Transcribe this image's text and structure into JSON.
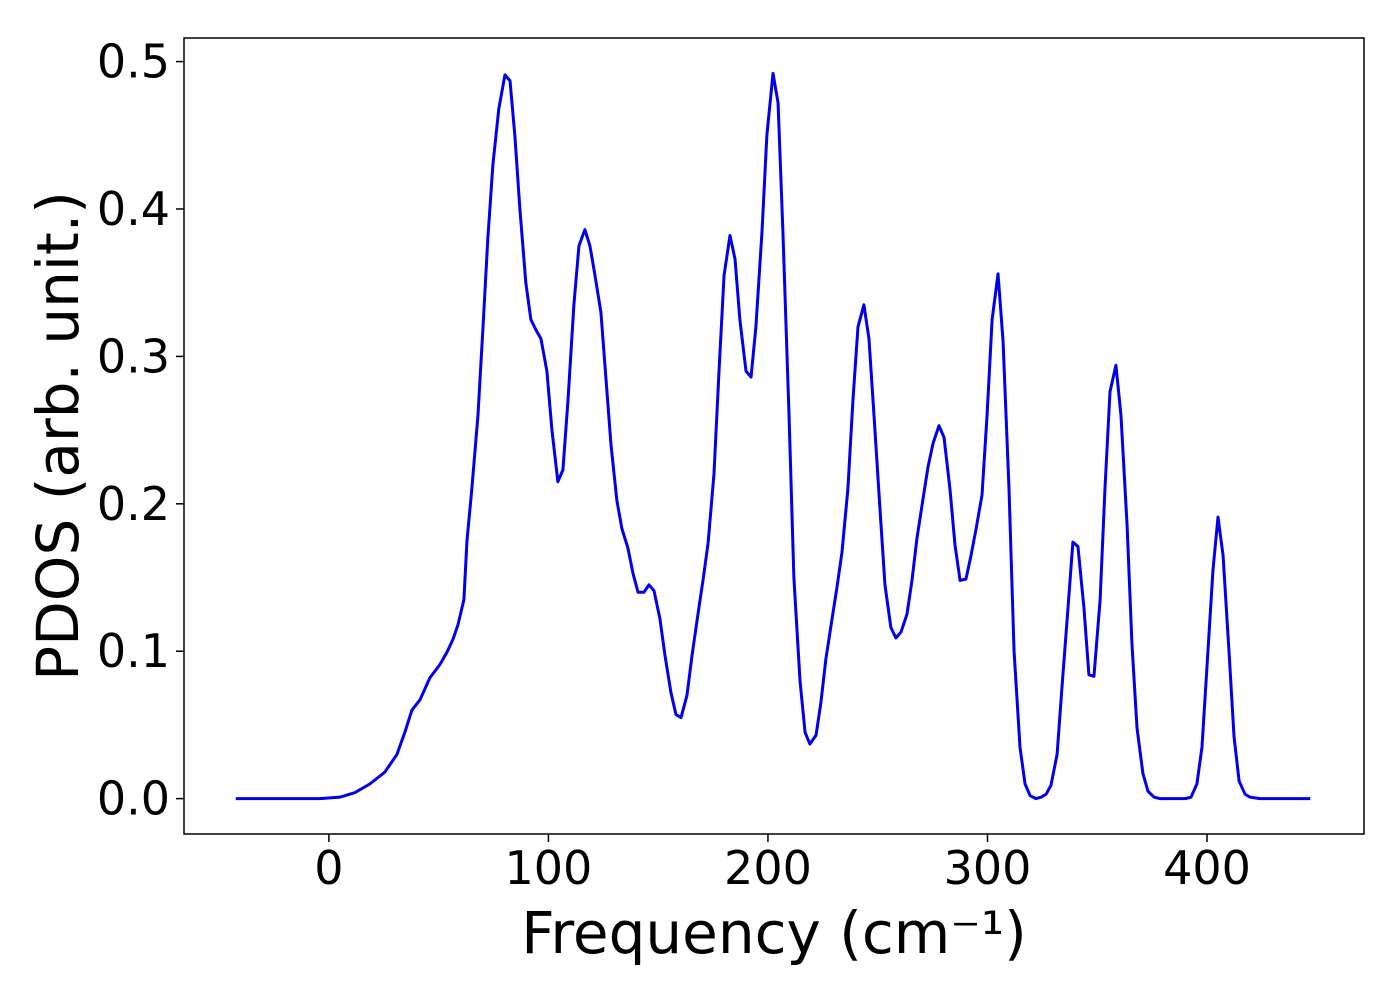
{
  "chart_data": {
    "type": "line",
    "xlabel": "Frequency (cm⁻¹)",
    "ylabel": "PDOS (arb. unit.)",
    "xlim": [
      -66,
      471.5
    ],
    "ylim": [
      -0.024,
      0.516
    ],
    "xticks": [
      0,
      100,
      200,
      300,
      400
    ],
    "yticks": [
      {
        "value": 0,
        "label": "0.0"
      },
      0.1,
      0.2,
      0.3,
      0.4,
      0.5
    ],
    "grid": false,
    "series": [
      {
        "color": "#0000ee",
        "x": [
          -42.4,
          -4.1,
          5,
          11.8,
          18.7,
          25.5,
          31,
          34.6,
          37.8,
          41.5,
          46,
          50.6,
          54,
          56.5,
          58.8,
          61.5,
          62.9,
          65.1,
          67.9,
          70.2,
          72.4,
          74.7,
          77.4,
          80.2,
          82.5,
          84.7,
          87,
          89.7,
          92,
          94.3,
          96.6,
          99.3,
          101.6,
          104.3,
          106.6,
          108.9,
          111.6,
          113.9,
          116.6,
          118.9,
          121.2,
          123.9,
          126.2,
          128.5,
          131.2,
          133.5,
          136.2,
          138.5,
          140.8,
          143.5,
          145.8,
          148.1,
          150.8,
          153.1,
          155.8,
          158.1,
          160.4,
          163.1,
          165.4,
          168.1,
          170.4,
          172.7,
          175.4,
          177.7,
          180,
          182.7,
          185,
          187.2,
          190,
          192.3,
          194.5,
          197.3,
          199.5,
          202.3,
          204.6,
          206.8,
          209.6,
          211.8,
          214.6,
          216.9,
          219.1,
          221.9,
          224.1,
          226.4,
          229.2,
          231.4,
          233.7,
          236.4,
          238.7,
          241,
          243.7,
          246,
          248.3,
          251,
          253.3,
          256,
          258.3,
          260.6,
          263.3,
          265.6,
          267.9,
          270.6,
          272.9,
          275.2,
          277.9,
          280.2,
          282.9,
          285.2,
          287.5,
          290.2,
          292.5,
          294.8,
          297.5,
          299.8,
          302.1,
          304.8,
          307.1,
          309.8,
          312.1,
          314.8,
          317.1,
          319.4,
          322.1,
          324.4,
          326.7,
          328.9,
          331.7,
          333.9,
          336.7,
          338.9,
          341.2,
          343.9,
          346.2,
          348.5,
          351.3,
          353.5,
          355.8,
          358.5,
          360.8,
          363.6,
          365.8,
          368.1,
          370.8,
          373.1,
          375.9,
          378.6,
          387.7,
          390,
          392.7,
          395.4,
          397.7,
          400,
          402.7,
          405,
          407.3,
          410,
          412.3,
          414.6,
          417.3,
          419.6,
          424.1,
          447
        ],
        "values": [
          0,
          0,
          0.001,
          0.004,
          0.01,
          0.018,
          0.03,
          0.045,
          0.06,
          0.067,
          0.082,
          0.091,
          0.1,
          0.108,
          0.118,
          0.135,
          0.175,
          0.21,
          0.26,
          0.32,
          0.38,
          0.43,
          0.468,
          0.491,
          0.487,
          0.45,
          0.4,
          0.35,
          0.325,
          0.318,
          0.312,
          0.29,
          0.25,
          0.215,
          0.223,
          0.27,
          0.335,
          0.375,
          0.386,
          0.375,
          0.355,
          0.33,
          0.285,
          0.24,
          0.202,
          0.183,
          0.17,
          0.153,
          0.14,
          0.14,
          0.145,
          0.141,
          0.122,
          0.097,
          0.072,
          0.057,
          0.055,
          0.07,
          0.097,
          0.125,
          0.148,
          0.173,
          0.22,
          0.29,
          0.355,
          0.382,
          0.366,
          0.325,
          0.29,
          0.286,
          0.32,
          0.385,
          0.45,
          0.492,
          0.472,
          0.385,
          0.26,
          0.15,
          0.08,
          0.045,
          0.037,
          0.043,
          0.065,
          0.095,
          0.122,
          0.143,
          0.167,
          0.21,
          0.27,
          0.32,
          0.335,
          0.312,
          0.26,
          0.197,
          0.145,
          0.116,
          0.109,
          0.113,
          0.125,
          0.148,
          0.177,
          0.203,
          0.225,
          0.241,
          0.253,
          0.245,
          0.21,
          0.172,
          0.148,
          0.149,
          0.165,
          0.183,
          0.206,
          0.26,
          0.325,
          0.356,
          0.31,
          0.21,
          0.1,
          0.035,
          0.01,
          0.002,
          0,
          0.001,
          0.003,
          0.009,
          0.03,
          0.075,
          0.13,
          0.174,
          0.171,
          0.13,
          0.084,
          0.083,
          0.135,
          0.21,
          0.276,
          0.294,
          0.26,
          0.185,
          0.105,
          0.048,
          0.017,
          0.005,
          0.001,
          0,
          0,
          0,
          0.001,
          0.01,
          0.035,
          0.09,
          0.155,
          0.191,
          0.165,
          0.1,
          0.042,
          0.012,
          0.003,
          0.001,
          0,
          0
        ]
      }
    ]
  }
}
